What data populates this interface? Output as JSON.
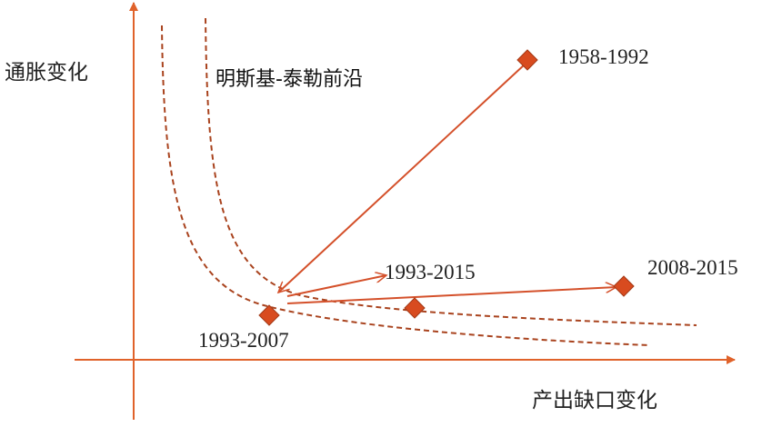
{
  "axes": {
    "y_label": "通胀变化",
    "x_label": "产出缺口变化"
  },
  "frontier_label": "明斯基-泰勒前沿",
  "points": [
    {
      "label": "1958-1992"
    },
    {
      "label": "1993-2007"
    },
    {
      "label": "1993-2015"
    },
    {
      "label": "2008-2015"
    }
  ]
}
